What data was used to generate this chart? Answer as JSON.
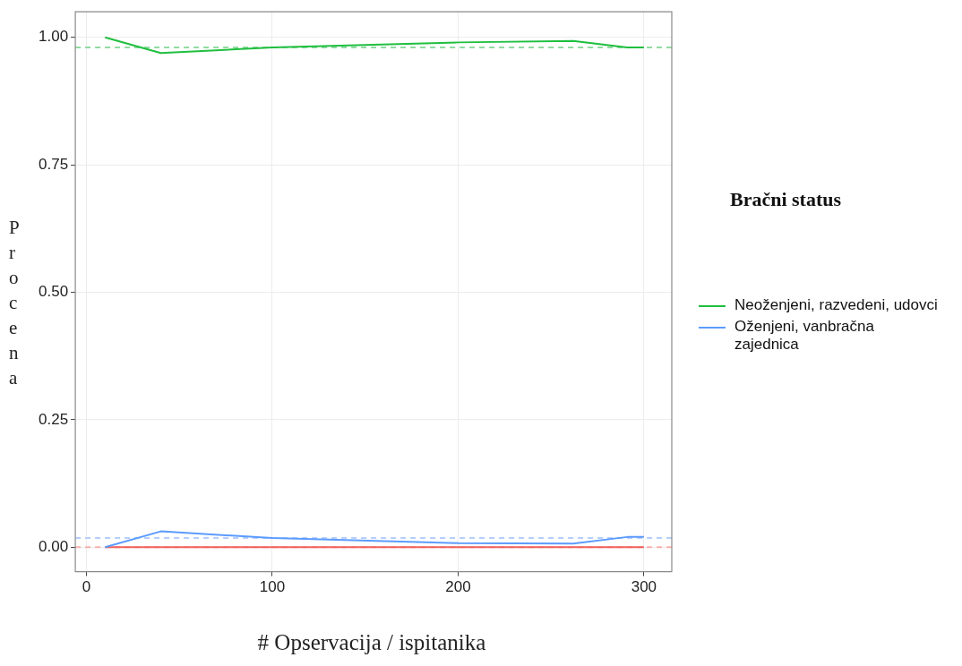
{
  "chart_data": {
    "type": "line",
    "xlabel": "# Opservacija / ispitanika",
    "ylabel": "Procena",
    "legend_title": "Bračni status",
    "legend": "right",
    "grid": true,
    "marker": "none",
    "line_style": "solid",
    "x": [
      10,
      40,
      100,
      200,
      262,
      291,
      300
    ],
    "xlim": [
      -6,
      315
    ],
    "xticks": [
      0,
      100,
      200,
      300
    ],
    "ylim": [
      -0.048,
      1.05
    ],
    "yticks": [
      {
        "value": 0,
        "label": "0.00"
      },
      {
        "value": 0.25,
        "label": "0.25"
      },
      {
        "value": 0.5,
        "label": "0.50"
      },
      {
        "value": 0.75,
        "label": "0.75"
      },
      {
        "value": 1,
        "label": "1.00"
      }
    ],
    "series": [
      {
        "name": "Neoženjeni, razvedeni, udovci",
        "color": "#1fbf3f",
        "values": [
          1.0,
          0.969,
          0.98,
          0.99,
          0.993,
          0.98,
          0.98
        ]
      },
      {
        "name": "Oženjeni, vanbračna zajednica",
        "color": "#5c9bff",
        "values": [
          0,
          0.031,
          0.018,
          0.008,
          0.007,
          0.02,
          0.02
        ]
      },
      {
        "color": "#f0605a",
        "values": [
          0,
          0,
          0,
          0,
          0,
          0,
          0
        ]
      }
    ],
    "ref_lines": [
      {
        "axis": "y",
        "value": 0.98,
        "color": "#90dba0",
        "line_style": "dashed"
      },
      {
        "axis": "y",
        "value": 0.018,
        "color": "#b5cffc",
        "line_style": "dashed"
      },
      {
        "axis": "y",
        "value": 0,
        "color": "#f8b0ad",
        "line_style": "dashed"
      }
    ]
  }
}
